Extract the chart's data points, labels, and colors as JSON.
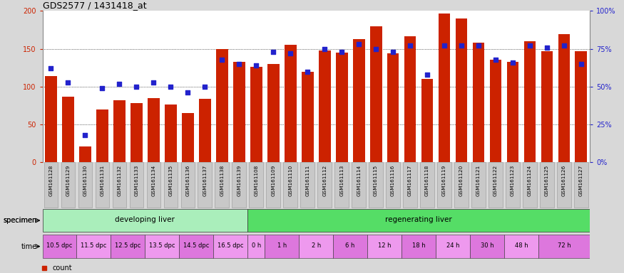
{
  "title": "GDS2577 / 1431418_at",
  "samples": [
    "GSM161128",
    "GSM161129",
    "GSM161130",
    "GSM161131",
    "GSM161132",
    "GSM161133",
    "GSM161134",
    "GSM161135",
    "GSM161136",
    "GSM161137",
    "GSM161138",
    "GSM161139",
    "GSM161108",
    "GSM161109",
    "GSM161110",
    "GSM161111",
    "GSM161112",
    "GSM161113",
    "GSM161114",
    "GSM161115",
    "GSM161116",
    "GSM161117",
    "GSM161118",
    "GSM161119",
    "GSM161120",
    "GSM161121",
    "GSM161122",
    "GSM161123",
    "GSM161124",
    "GSM161125",
    "GSM161126",
    "GSM161127"
  ],
  "counts": [
    114,
    87,
    21,
    70,
    82,
    78,
    85,
    76,
    65,
    84,
    150,
    133,
    126,
    130,
    155,
    120,
    148,
    145,
    163,
    180,
    144,
    167,
    110,
    197,
    190,
    158,
    136,
    133,
    160,
    147,
    169,
    147
  ],
  "percentile": [
    62,
    53,
    18,
    49,
    52,
    50,
    53,
    50,
    46,
    50,
    68,
    65,
    64,
    73,
    72,
    60,
    75,
    73,
    78,
    75,
    73,
    77,
    58,
    77,
    77,
    77,
    68,
    66,
    77,
    76,
    77,
    65
  ],
  "bar_color": "#cc2200",
  "dot_color": "#2222cc",
  "fig_bg": "#d8d8d8",
  "plot_bg": "#ffffff",
  "xtick_bg": "#c8c8c8",
  "ylim_left": [
    0,
    200
  ],
  "ylim_right": [
    0,
    100
  ],
  "yticks_left": [
    0,
    50,
    100,
    150,
    200
  ],
  "ytick_labels_right": [
    "0%",
    "25%",
    "50%",
    "75%",
    "100%"
  ],
  "specimen_groups": [
    {
      "label": "developing liver",
      "start": 0,
      "end": 12,
      "color": "#aaeebb"
    },
    {
      "label": "regenerating liver",
      "start": 12,
      "end": 32,
      "color": "#55dd66"
    }
  ],
  "time_groups": [
    {
      "label": "10.5 dpc",
      "start": 0,
      "end": 2,
      "color": "#dd77dd"
    },
    {
      "label": "11.5 dpc",
      "start": 2,
      "end": 4,
      "color": "#ee99ee"
    },
    {
      "label": "12.5 dpc",
      "start": 4,
      "end": 6,
      "color": "#dd77dd"
    },
    {
      "label": "13.5 dpc",
      "start": 6,
      "end": 8,
      "color": "#ee99ee"
    },
    {
      "label": "14.5 dpc",
      "start": 8,
      "end": 10,
      "color": "#dd77dd"
    },
    {
      "label": "16.5 dpc",
      "start": 10,
      "end": 12,
      "color": "#ee99ee"
    },
    {
      "label": "0 h",
      "start": 12,
      "end": 13,
      "color": "#ee99ee"
    },
    {
      "label": "1 h",
      "start": 13,
      "end": 15,
      "color": "#dd77dd"
    },
    {
      "label": "2 h",
      "start": 15,
      "end": 17,
      "color": "#ee99ee"
    },
    {
      "label": "6 h",
      "start": 17,
      "end": 19,
      "color": "#dd77dd"
    },
    {
      "label": "12 h",
      "start": 19,
      "end": 21,
      "color": "#ee99ee"
    },
    {
      "label": "18 h",
      "start": 21,
      "end": 23,
      "color": "#dd77dd"
    },
    {
      "label": "24 h",
      "start": 23,
      "end": 25,
      "color": "#ee99ee"
    },
    {
      "label": "30 h",
      "start": 25,
      "end": 27,
      "color": "#dd77dd"
    },
    {
      "label": "48 h",
      "start": 27,
      "end": 29,
      "color": "#ee99ee"
    },
    {
      "label": "72 h",
      "start": 29,
      "end": 32,
      "color": "#dd77dd"
    }
  ],
  "legend_count_color": "#cc2200",
  "legend_pct_color": "#2222cc",
  "tick_color_left": "#cc2200",
  "tick_color_right": "#2222cc"
}
